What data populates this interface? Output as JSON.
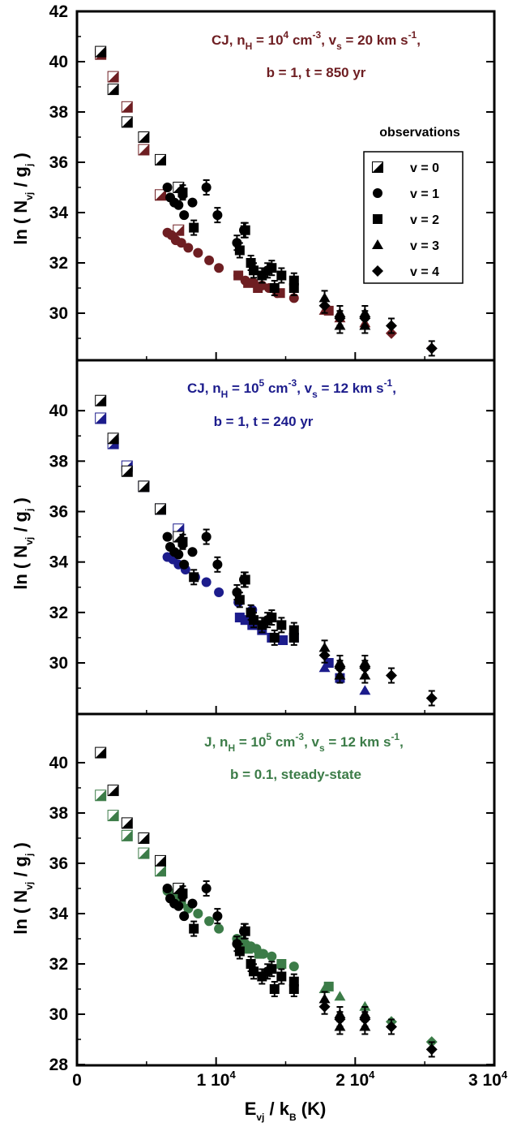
{
  "chart_data": {
    "type": "scatter",
    "xaxis": {
      "label": {
        "main": "E",
        "sub1": "vj",
        "mid": " / k",
        "sub2": "B",
        "tail": " (K)"
      },
      "range": [
        0,
        30000
      ],
      "ticks": [
        {
          "value": 0,
          "label": "0"
        },
        {
          "value": 10000,
          "label": "1 10",
          "exp": "4"
        },
        {
          "value": 20000,
          "label": "2 10",
          "exp": "4"
        },
        {
          "value": 30000,
          "label": "3 10",
          "exp": "4"
        }
      ]
    },
    "ylabel": {
      "pre": "ln ( N",
      "sub1": "vj",
      "mid": " / g",
      "sub2": "j",
      "tail": " )"
    },
    "colors": {
      "observations": "#000000",
      "panel1": "#6e1e22",
      "panel2": "#1c1c8c",
      "panel3": "#3c7c48"
    },
    "legend": {
      "title": "observations",
      "placement": "top-right of top panel",
      "entries": [
        {
          "label": "v = 0",
          "marker": "half-square"
        },
        {
          "label": "v = 1",
          "marker": "circle"
        },
        {
          "label": "v = 2",
          "marker": "square"
        },
        {
          "label": "v = 3",
          "marker": "triangle"
        },
        {
          "label": "v = 4",
          "marker": "diamond"
        }
      ]
    },
    "observations": [
      {
        "v": 0,
        "x": 1700,
        "y": 40.4
      },
      {
        "v": 0,
        "x": 2600,
        "y": 38.9
      },
      {
        "v": 0,
        "x": 3600,
        "y": 37.6
      },
      {
        "v": 0,
        "x": 4800,
        "y": 37.0
      },
      {
        "v": 0,
        "x": 6000,
        "y": 36.1
      },
      {
        "v": 0,
        "x": 7300,
        "y": 35.0
      },
      {
        "v": 1,
        "x": 6500,
        "y": 35.0
      },
      {
        "v": 1,
        "x": 6700,
        "y": 34.6
      },
      {
        "v": 1,
        "x": 7000,
        "y": 34.4
      },
      {
        "v": 1,
        "x": 7300,
        "y": 34.3
      },
      {
        "v": 1,
        "x": 7600,
        "y": 34.7
      },
      {
        "v": 1,
        "x": 7700,
        "y": 33.9
      },
      {
        "v": 1,
        "x": 8300,
        "y": 34.4
      },
      {
        "v": 1,
        "x": 9300,
        "y": 35.0
      },
      {
        "v": 1,
        "x": 10100,
        "y": 33.9
      },
      {
        "v": 1,
        "x": 12000,
        "y": 33.3
      },
      {
        "v": 1,
        "x": 11500,
        "y": 32.8
      },
      {
        "v": 1,
        "x": 13700,
        "y": 31.7
      },
      {
        "v": 2,
        "x": 7600,
        "y": 34.8
      },
      {
        "v": 2,
        "x": 8400,
        "y": 33.4
      },
      {
        "v": 2,
        "x": 11700,
        "y": 32.5
      },
      {
        "v": 2,
        "x": 12100,
        "y": 33.3
      },
      {
        "v": 2,
        "x": 12500,
        "y": 32.0
      },
      {
        "v": 2,
        "x": 12700,
        "y": 31.7
      },
      {
        "v": 2,
        "x": 13300,
        "y": 31.5
      },
      {
        "v": 2,
        "x": 14000,
        "y": 31.8
      },
      {
        "v": 2,
        "x": 14200,
        "y": 31.0
      },
      {
        "v": 2,
        "x": 14700,
        "y": 31.5
      },
      {
        "v": 2,
        "x": 15600,
        "y": 31.3
      },
      {
        "v": 2,
        "x": 15600,
        "y": 31.0
      },
      {
        "v": 3,
        "x": 17800,
        "y": 30.6
      },
      {
        "v": 3,
        "x": 18900,
        "y": 30.0
      },
      {
        "v": 3,
        "x": 18900,
        "y": 29.5
      },
      {
        "v": 3,
        "x": 20700,
        "y": 30.0
      },
      {
        "v": 3,
        "x": 20700,
        "y": 29.5
      },
      {
        "v": 4,
        "x": 17800,
        "y": 30.3
      },
      {
        "v": 4,
        "x": 18900,
        "y": 29.8
      },
      {
        "v": 4,
        "x": 20700,
        "y": 29.8
      },
      {
        "v": 4,
        "x": 22600,
        "y": 29.5
      },
      {
        "v": 4,
        "x": 25500,
        "y": 28.6
      }
    ],
    "panels": [
      {
        "y_range": [
          28,
          42
        ],
        "y_ticks": [
          "30",
          "32",
          "34",
          "36",
          "38",
          "40",
          "42"
        ],
        "color_key": "panel1",
        "annotation": {
          "l1a": "CJ, n",
          "l1b": "H",
          "l1c": " = 10",
          "l1d": "4",
          "l1e": " cm",
          "l1f": "-3",
          "l1g": ", v",
          "l1h": "s",
          "l1i": " = 20 km s",
          "l1j": "-1",
          "l1k": ",",
          "line2": "b = 1, t = 850 yr"
        },
        "model": [
          {
            "v": 0,
            "x": 1700,
            "y": 40.3
          },
          {
            "v": 0,
            "x": 2600,
            "y": 39.4
          },
          {
            "v": 0,
            "x": 3600,
            "y": 38.2
          },
          {
            "v": 0,
            "x": 4800,
            "y": 36.5
          },
          {
            "v": 0,
            "x": 6000,
            "y": 34.7
          },
          {
            "v": 0,
            "x": 7300,
            "y": 33.3
          },
          {
            "v": 1,
            "x": 6500,
            "y": 33.2
          },
          {
            "v": 1,
            "x": 6800,
            "y": 33.1
          },
          {
            "v": 1,
            "x": 7100,
            "y": 32.9
          },
          {
            "v": 1,
            "x": 7500,
            "y": 32.8
          },
          {
            "v": 1,
            "x": 8000,
            "y": 32.6
          },
          {
            "v": 1,
            "x": 8700,
            "y": 32.4
          },
          {
            "v": 1,
            "x": 9500,
            "y": 32.1
          },
          {
            "v": 1,
            "x": 10200,
            "y": 31.8
          },
          {
            "v": 1,
            "x": 11600,
            "y": 31.5
          },
          {
            "v": 1,
            "x": 12100,
            "y": 31.3
          },
          {
            "v": 1,
            "x": 12700,
            "y": 31.2
          },
          {
            "v": 1,
            "x": 13300,
            "y": 31.1
          },
          {
            "v": 1,
            "x": 13800,
            "y": 31.0
          },
          {
            "v": 1,
            "x": 14400,
            "y": 30.8
          },
          {
            "v": 1,
            "x": 15600,
            "y": 30.6
          },
          {
            "v": 2,
            "x": 11600,
            "y": 31.5
          },
          {
            "v": 2,
            "x": 12300,
            "y": 31.2
          },
          {
            "v": 2,
            "x": 13000,
            "y": 31.0
          },
          {
            "v": 2,
            "x": 14600,
            "y": 30.8
          },
          {
            "v": 2,
            "x": 18100,
            "y": 30.1
          },
          {
            "v": 3,
            "x": 17800,
            "y": 30.1
          },
          {
            "v": 3,
            "x": 18900,
            "y": 29.8
          },
          {
            "v": 3,
            "x": 20700,
            "y": 29.6
          },
          {
            "v": 4,
            "x": 22600,
            "y": 29.2
          },
          {
            "v": 4,
            "x": 25500,
            "y": 28.6
          }
        ]
      },
      {
        "y_range": [
          28,
          42
        ],
        "y_ticks": [
          "30",
          "32",
          "34",
          "36",
          "38",
          "40"
        ],
        "color_key": "panel2",
        "annotation": {
          "l1a": "CJ, n",
          "l1b": "H",
          "l1c": " = 10",
          "l1d": "5",
          "l1e": " cm",
          "l1f": "-3",
          "l1g": ", v",
          "l1h": "s",
          "l1i": " = 12 km s",
          "l1j": "-1",
          "l1k": ",",
          "line2": "b = 1, t = 240 yr"
        },
        "model": [
          {
            "v": 0,
            "x": 1700,
            "y": 39.7
          },
          {
            "v": 0,
            "x": 2600,
            "y": 38.7
          },
          {
            "v": 0,
            "x": 3600,
            "y": 37.8
          },
          {
            "v": 0,
            "x": 4800,
            "y": 37.0
          },
          {
            "v": 0,
            "x": 6000,
            "y": 36.1
          },
          {
            "v": 0,
            "x": 7300,
            "y": 35.3
          },
          {
            "v": 1,
            "x": 6500,
            "y": 34.2
          },
          {
            "v": 1,
            "x": 6900,
            "y": 34.1
          },
          {
            "v": 1,
            "x": 7300,
            "y": 33.9
          },
          {
            "v": 1,
            "x": 7800,
            "y": 33.7
          },
          {
            "v": 1,
            "x": 8500,
            "y": 33.4
          },
          {
            "v": 1,
            "x": 9300,
            "y": 33.2
          },
          {
            "v": 1,
            "x": 10200,
            "y": 32.8
          },
          {
            "v": 1,
            "x": 11600,
            "y": 32.4
          },
          {
            "v": 1,
            "x": 12600,
            "y": 32.1
          },
          {
            "v": 2,
            "x": 11700,
            "y": 31.8
          },
          {
            "v": 2,
            "x": 12100,
            "y": 31.7
          },
          {
            "v": 2,
            "x": 12600,
            "y": 31.5
          },
          {
            "v": 2,
            "x": 13300,
            "y": 31.3
          },
          {
            "v": 2,
            "x": 14000,
            "y": 31.0
          },
          {
            "v": 2,
            "x": 14800,
            "y": 30.9
          },
          {
            "v": 2,
            "x": 15600,
            "y": 31.0
          },
          {
            "v": 2,
            "x": 18100,
            "y": 30.0
          },
          {
            "v": 2,
            "x": 18900,
            "y": 29.4
          },
          {
            "v": 3,
            "x": 17800,
            "y": 29.8
          },
          {
            "v": 3,
            "x": 20700,
            "y": 28.9
          }
        ]
      },
      {
        "y_range": [
          28,
          42
        ],
        "y_ticks": [
          "28",
          "30",
          "32",
          "34",
          "36",
          "38",
          "40"
        ],
        "color_key": "panel3",
        "annotation": {
          "l1a": "J, n",
          "l1b": "H",
          "l1c": " = 10",
          "l1d": "5",
          "l1e": " cm",
          "l1f": "-3",
          "l1g": ", v",
          "l1h": "s",
          "l1i": " = 12 km s",
          "l1j": "-1",
          "l1k": ",",
          "line2": "b = 0.1, steady-state"
        },
        "model": [
          {
            "v": 0,
            "x": 1700,
            "y": 38.7
          },
          {
            "v": 0,
            "x": 2600,
            "y": 37.9
          },
          {
            "v": 0,
            "x": 3600,
            "y": 37.1
          },
          {
            "v": 0,
            "x": 4800,
            "y": 36.4
          },
          {
            "v": 0,
            "x": 6000,
            "y": 35.7
          },
          {
            "v": 0,
            "x": 7300,
            "y": 35.0
          },
          {
            "v": 1,
            "x": 6500,
            "y": 34.9
          },
          {
            "v": 1,
            "x": 6800,
            "y": 34.8
          },
          {
            "v": 1,
            "x": 7100,
            "y": 34.6
          },
          {
            "v": 1,
            "x": 7500,
            "y": 34.4
          },
          {
            "v": 1,
            "x": 8000,
            "y": 34.2
          },
          {
            "v": 1,
            "x": 8700,
            "y": 34.0
          },
          {
            "v": 1,
            "x": 9500,
            "y": 33.7
          },
          {
            "v": 1,
            "x": 10200,
            "y": 33.4
          },
          {
            "v": 1,
            "x": 11500,
            "y": 33.0
          },
          {
            "v": 1,
            "x": 11800,
            "y": 32.9
          },
          {
            "v": 1,
            "x": 12100,
            "y": 32.8
          },
          {
            "v": 1,
            "x": 12500,
            "y": 32.7
          },
          {
            "v": 1,
            "x": 12900,
            "y": 32.6
          },
          {
            "v": 1,
            "x": 13400,
            "y": 32.4
          },
          {
            "v": 1,
            "x": 14000,
            "y": 32.3
          },
          {
            "v": 1,
            "x": 15600,
            "y": 31.9
          },
          {
            "v": 2,
            "x": 11700,
            "y": 32.8
          },
          {
            "v": 2,
            "x": 12300,
            "y": 32.6
          },
          {
            "v": 2,
            "x": 13100,
            "y": 32.4
          },
          {
            "v": 2,
            "x": 14700,
            "y": 32.0
          },
          {
            "v": 2,
            "x": 18100,
            "y": 31.1
          },
          {
            "v": 3,
            "x": 17800,
            "y": 31.0
          },
          {
            "v": 3,
            "x": 18900,
            "y": 30.7
          },
          {
            "v": 3,
            "x": 20700,
            "y": 30.3
          },
          {
            "v": 4,
            "x": 22600,
            "y": 29.7
          },
          {
            "v": 4,
            "x": 25500,
            "y": 28.9
          }
        ]
      }
    ]
  }
}
